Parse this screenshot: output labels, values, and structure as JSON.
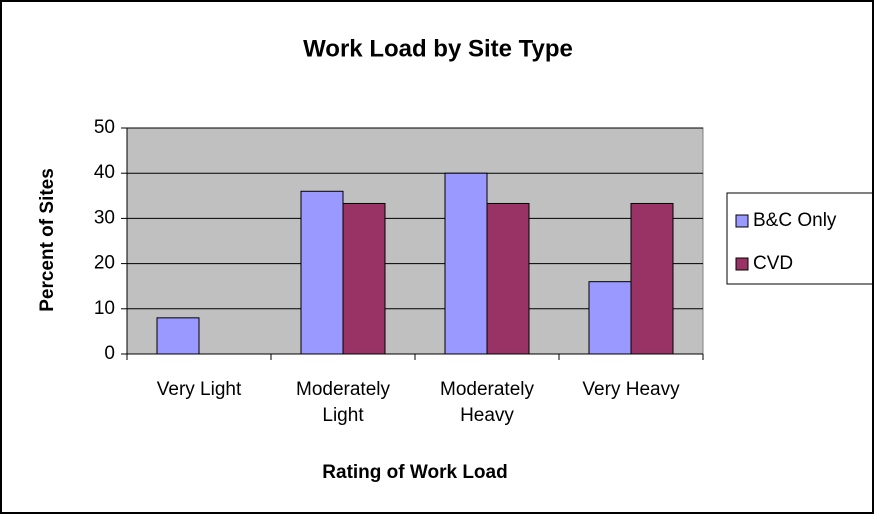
{
  "chart_data": {
    "type": "bar",
    "title": "Work Load by Site Type",
    "x_label": "Rating of Work Load",
    "y_label": "Percent of Sites",
    "categories": [
      "Very Light",
      "Moderately Light",
      "Moderately Heavy",
      "Very Heavy"
    ],
    "series": [
      {
        "name": "B&C Only",
        "color": "#9999ff",
        "values": [
          8,
          36,
          40,
          16
        ]
      },
      {
        "name": "CVD",
        "color": "#993366",
        "values": [
          0,
          33.3,
          33.3,
          33.3
        ]
      }
    ],
    "ylim": [
      0,
      50
    ],
    "yticks": [
      0,
      10,
      20,
      30,
      40,
      50
    ],
    "grid": true,
    "plot_background": "#c0c0c0",
    "legend": "right"
  }
}
